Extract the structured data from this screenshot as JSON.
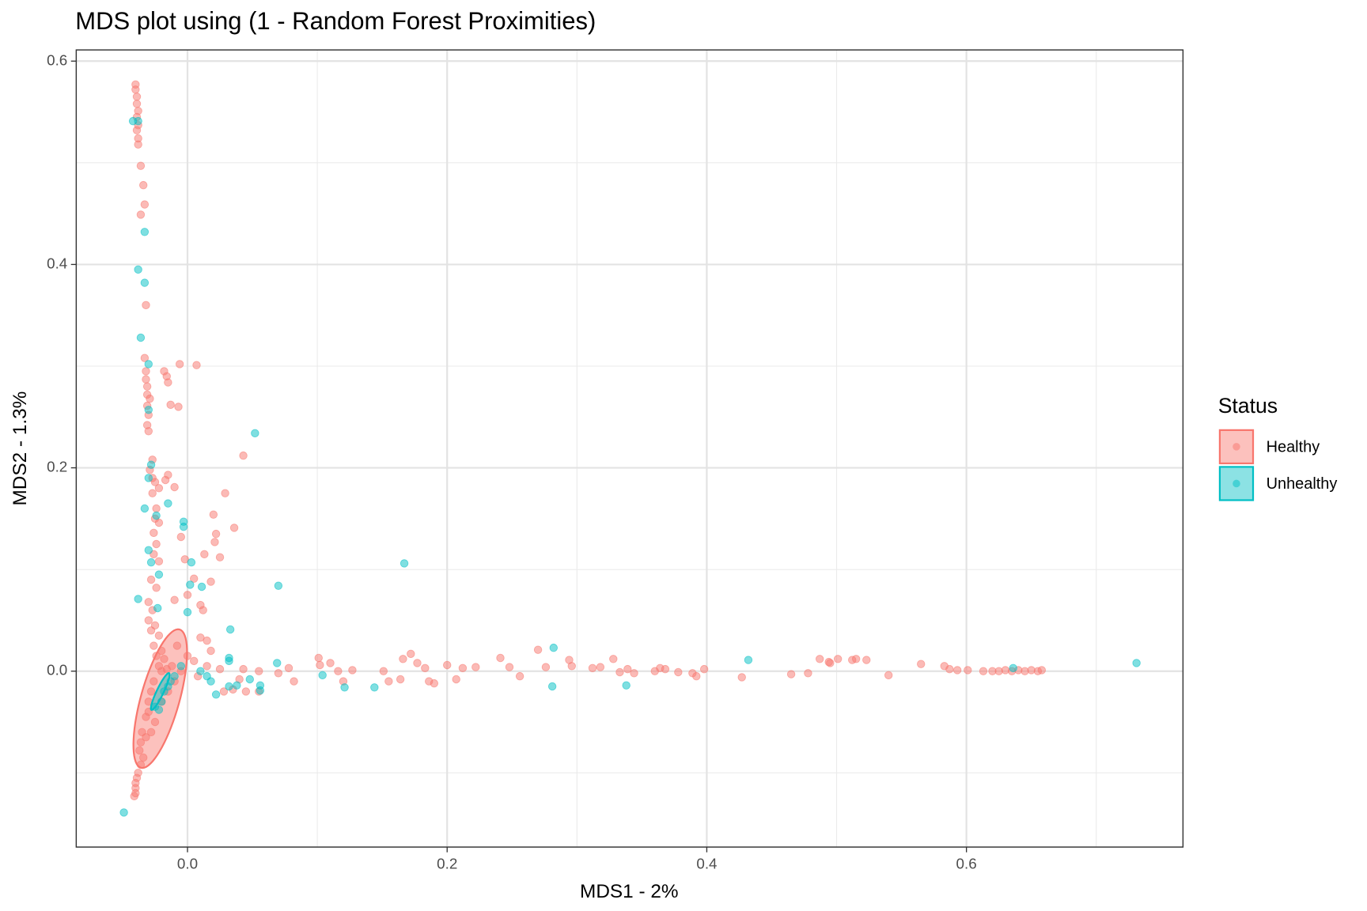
{
  "chart_data": {
    "type": "scatter",
    "title": "MDS plot using (1 - Random Forest Proximities)",
    "x_label": "MDS1 - 2%",
    "y_label": "MDS2 - 1.3%",
    "legend_title": "Status",
    "legend_position": "right",
    "grid": true,
    "xlim": [
      -0.0857,
      0.7668
    ],
    "ylim": [
      -0.173,
      0.611
    ],
    "xticks": [
      {
        "value": 0,
        "label": "0.0"
      },
      0.2,
      0.4,
      0.6
    ],
    "yticks": [
      {
        "value": 0,
        "label": "0.0"
      },
      0.2,
      0.4,
      0.6
    ],
    "xticks_minor": [
      0.1,
      0.3,
      0.5,
      0.7
    ],
    "yticks_minor": [
      -0.1,
      0.1,
      0.3,
      0.5
    ],
    "series": [
      {
        "name": "Healthy",
        "color": "#F8766D",
        "ellipse": {
          "center": [
            -0.021,
            -0.027
          ],
          "axis1": [
            0.0149,
            0.068
          ],
          "axis2": [
            0.0143,
            -0.0052
          ]
        },
        "points": [
          [
            -0.04,
            0.577
          ],
          [
            -0.04,
            0.572
          ],
          [
            -0.039,
            0.565
          ],
          [
            -0.039,
            0.558
          ],
          [
            -0.038,
            0.551
          ],
          [
            -0.039,
            0.545
          ],
          [
            -0.038,
            0.537
          ],
          [
            -0.039,
            0.532
          ],
          [
            -0.038,
            0.524
          ],
          [
            -0.038,
            0.518
          ],
          [
            -0.036,
            0.497
          ],
          [
            -0.034,
            0.478
          ],
          [
            -0.033,
            0.459
          ],
          [
            -0.036,
            0.449
          ],
          [
            -0.032,
            0.36
          ],
          [
            -0.033,
            0.308
          ],
          [
            -0.032,
            0.295
          ],
          [
            -0.032,
            0.287
          ],
          [
            -0.031,
            0.28
          ],
          [
            -0.031,
            0.272
          ],
          [
            -0.029,
            0.268
          ],
          [
            -0.031,
            0.261
          ],
          [
            -0.03,
            0.252
          ],
          [
            -0.031,
            0.242
          ],
          [
            -0.03,
            0.236
          ],
          [
            -0.027,
            0.208
          ],
          [
            -0.029,
            0.198
          ],
          [
            -0.027,
            0.19
          ],
          [
            -0.025,
            0.186
          ],
          [
            -0.022,
            0.18
          ],
          [
            -0.027,
            0.175
          ],
          [
            -0.024,
            0.16
          ],
          [
            -0.025,
            0.15
          ],
          [
            -0.022,
            0.146
          ],
          [
            -0.026,
            0.136
          ],
          [
            -0.024,
            0.125
          ],
          [
            -0.026,
            0.115
          ],
          [
            -0.022,
            0.108
          ],
          [
            -0.028,
            0.09
          ],
          [
            -0.024,
            0.082
          ],
          [
            -0.03,
            0.068
          ],
          [
            -0.027,
            0.06
          ],
          [
            -0.03,
            0.05
          ],
          [
            -0.025,
            0.045
          ],
          [
            -0.028,
            0.04
          ],
          [
            -0.022,
            0.035
          ],
          [
            -0.026,
            0.025
          ],
          [
            -0.02,
            0.02
          ],
          [
            -0.024,
            0.015
          ],
          [
            -0.018,
            0.012
          ],
          [
            -0.022,
            0.005
          ],
          [
            -0.016,
            0.002
          ],
          [
            -0.026,
            -0.01
          ],
          [
            -0.028,
            -0.02
          ],
          [
            -0.03,
            -0.03
          ],
          [
            -0.032,
            -0.045
          ],
          [
            -0.035,
            -0.06
          ],
          [
            -0.036,
            -0.07
          ],
          [
            -0.037,
            -0.078
          ],
          [
            -0.034,
            -0.085
          ],
          [
            -0.036,
            -0.092
          ],
          [
            -0.038,
            -0.1
          ],
          [
            -0.039,
            -0.105
          ],
          [
            -0.04,
            -0.11
          ],
          [
            -0.04,
            -0.115
          ],
          [
            -0.04,
            -0.12
          ],
          [
            -0.041,
            -0.123
          ],
          [
            -0.018,
            0.295
          ],
          [
            -0.016,
            0.29
          ],
          [
            -0.015,
            0.284
          ],
          [
            -0.006,
            0.302
          ],
          [
            0.007,
            0.301
          ],
          [
            -0.013,
            0.262
          ],
          [
            -0.007,
            0.26
          ],
          [
            -0.015,
            0.193
          ],
          [
            -0.017,
            0.188
          ],
          [
            -0.01,
            0.181
          ],
          [
            0.02,
            0.154
          ],
          [
            0.029,
            0.175
          ],
          [
            0.043,
            0.212
          ],
          [
            0.036,
            0.141
          ],
          [
            0.022,
            0.135
          ],
          [
            0.021,
            0.127
          ],
          [
            0.025,
            0.112
          ],
          [
            0.013,
            0.115
          ],
          [
            -0.005,
            0.132
          ],
          [
            -0.002,
            0.11
          ],
          [
            0.018,
            0.088
          ],
          [
            0.005,
            0.091
          ],
          [
            0.0,
            0.075
          ],
          [
            0.012,
            0.06
          ],
          [
            0.01,
            0.065
          ],
          [
            -0.01,
            0.07
          ],
          [
            0.015,
            0.03
          ],
          [
            0.01,
            0.033
          ],
          [
            0.018,
            0.02
          ],
          [
            0.015,
            0.005
          ],
          [
            0.025,
            0.002
          ],
          [
            0.028,
            -0.02
          ],
          [
            0.035,
            -0.018
          ],
          [
            0.04,
            -0.008
          ],
          [
            0.045,
            -0.02
          ],
          [
            0.055,
            -0.02
          ],
          [
            0.043,
            0.002
          ],
          [
            0.055,
            0.0
          ],
          [
            0.07,
            -0.002
          ],
          [
            0.078,
            0.003
          ],
          [
            0.082,
            -0.01
          ],
          [
            0.101,
            0.013
          ],
          [
            0.102,
            0.006
          ],
          [
            0.11,
            0.008
          ],
          [
            0.116,
            0.0
          ],
          [
            0.12,
            -0.01
          ],
          [
            0.127,
            0.001
          ],
          [
            0.151,
            0.0
          ],
          [
            0.155,
            -0.01
          ],
          [
            0.164,
            -0.008
          ],
          [
            0.166,
            0.012
          ],
          [
            0.172,
            0.017
          ],
          [
            0.177,
            0.008
          ],
          [
            0.183,
            0.003
          ],
          [
            0.186,
            -0.01
          ],
          [
            0.19,
            -0.012
          ],
          [
            0.2,
            0.006
          ],
          [
            0.207,
            -0.008
          ],
          [
            0.212,
            0.003
          ],
          [
            0.222,
            0.004
          ],
          [
            0.241,
            0.013
          ],
          [
            0.248,
            0.004
          ],
          [
            0.256,
            -0.005
          ],
          [
            0.27,
            0.021
          ],
          [
            0.276,
            0.004
          ],
          [
            0.294,
            0.011
          ],
          [
            0.296,
            0.005
          ],
          [
            0.312,
            0.003
          ],
          [
            0.318,
            0.004
          ],
          [
            0.328,
            0.012
          ],
          [
            0.333,
            -0.001
          ],
          [
            0.339,
            0.002
          ],
          [
            0.344,
            -0.002
          ],
          [
            0.36,
            0.0
          ],
          [
            0.364,
            0.003
          ],
          [
            0.368,
            0.002
          ],
          [
            0.378,
            -0.001
          ],
          [
            0.389,
            -0.002
          ],
          [
            0.392,
            -0.005
          ],
          [
            0.398,
            0.002
          ],
          [
            0.427,
            -0.006
          ],
          [
            0.465,
            -0.003
          ],
          [
            0.478,
            -0.002
          ],
          [
            0.487,
            0.012
          ],
          [
            0.494,
            0.009
          ],
          [
            0.495,
            0.008
          ],
          [
            0.501,
            0.012
          ],
          [
            0.512,
            0.011
          ],
          [
            0.515,
            0.012
          ],
          [
            0.523,
            0.011
          ],
          [
            0.54,
            -0.004
          ],
          [
            0.565,
            0.007
          ],
          [
            0.583,
            0.005
          ],
          [
            0.587,
            0.002
          ],
          [
            0.593,
            0.001
          ],
          [
            0.601,
            0.001
          ],
          [
            0.613,
            0.0
          ],
          [
            0.62,
            0.0
          ],
          [
            0.625,
            0.0
          ],
          [
            0.63,
            0.001
          ],
          [
            0.635,
            0.0
          ],
          [
            0.64,
            0.001
          ],
          [
            0.645,
            0.0
          ],
          [
            0.65,
            0.001
          ],
          [
            0.655,
            0.0
          ],
          [
            0.658,
            0.001
          ],
          [
            -0.03,
            -0.04
          ],
          [
            -0.025,
            -0.05
          ],
          [
            -0.02,
            -0.03
          ],
          [
            -0.015,
            -0.02
          ],
          [
            -0.01,
            -0.01
          ],
          [
            -0.005,
            0.0
          ],
          [
            -0.012,
            0.005
          ],
          [
            -0.02,
            0.0
          ],
          [
            -0.028,
            -0.06
          ],
          [
            -0.032,
            -0.065
          ],
          [
            0.005,
            0.01
          ],
          [
            0.0,
            0.015
          ],
          [
            -0.008,
            0.025
          ],
          [
            0.008,
            -0.005
          ]
        ]
      },
      {
        "name": "Unhealthy",
        "color": "#00BFC4",
        "ellipse": {
          "center": [
            -0.021,
            -0.02
          ],
          "axis1": [
            0.0068,
            0.0181
          ],
          "axis2": [
            0.0024,
            -0.0015
          ]
        },
        "points": [
          [
            -0.042,
            0.541
          ],
          [
            -0.038,
            0.541
          ],
          [
            -0.033,
            0.432
          ],
          [
            -0.038,
            0.395
          ],
          [
            -0.033,
            0.382
          ],
          [
            -0.036,
            0.328
          ],
          [
            -0.03,
            0.302
          ],
          [
            -0.03,
            0.257
          ],
          [
            -0.028,
            0.203
          ],
          [
            -0.03,
            0.19
          ],
          [
            -0.033,
            0.16
          ],
          [
            -0.015,
            0.165
          ],
          [
            -0.024,
            0.153
          ],
          [
            -0.003,
            0.147
          ],
          [
            -0.003,
            0.142
          ],
          [
            -0.03,
            0.119
          ],
          [
            -0.028,
            0.107
          ],
          [
            -0.022,
            0.095
          ],
          [
            0.003,
            0.107
          ],
          [
            0.002,
            0.085
          ],
          [
            0.011,
            0.083
          ],
          [
            0.0,
            0.058
          ],
          [
            -0.038,
            0.071
          ],
          [
            -0.023,
            0.062
          ],
          [
            0.052,
            0.234
          ],
          [
            0.07,
            0.084
          ],
          [
            0.033,
            0.041
          ],
          [
            0.032,
            0.013
          ],
          [
            0.032,
            0.01
          ],
          [
            0.069,
            0.008
          ],
          [
            0.167,
            0.106
          ],
          [
            0.282,
            0.023
          ],
          [
            0.281,
            -0.015
          ],
          [
            0.338,
            -0.014
          ],
          [
            0.432,
            0.011
          ],
          [
            0.636,
            0.003
          ],
          [
            0.731,
            0.008
          ],
          [
            -0.049,
            -0.139
          ],
          [
            0.022,
            -0.023
          ],
          [
            0.032,
            -0.015
          ],
          [
            0.038,
            -0.014
          ],
          [
            0.048,
            -0.008
          ],
          [
            0.056,
            -0.014
          ],
          [
            0.056,
            -0.019
          ],
          [
            0.104,
            -0.004
          ],
          [
            0.121,
            -0.016
          ],
          [
            0.144,
            -0.016
          ],
          [
            -0.02,
            -0.03
          ],
          [
            -0.025,
            -0.035
          ],
          [
            -0.018,
            -0.02
          ],
          [
            -0.015,
            -0.015
          ],
          [
            -0.01,
            -0.005
          ],
          [
            -0.005,
            0.005
          ],
          [
            -0.022,
            -0.038
          ],
          [
            -0.013,
            -0.01
          ],
          [
            0.01,
            0.0
          ],
          [
            0.015,
            -0.005
          ],
          [
            0.018,
            -0.01
          ]
        ]
      }
    ]
  }
}
